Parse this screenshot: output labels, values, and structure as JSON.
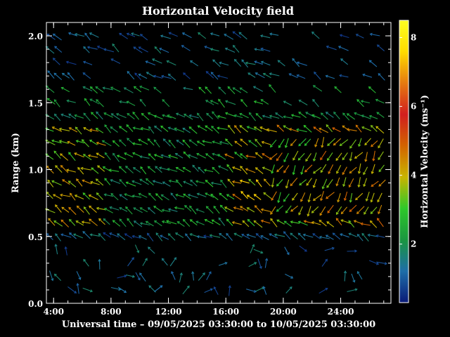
{
  "chart_data": {
    "type": "vector-field",
    "title": "Horizontal Velocity field",
    "xlabel": "Universal time – 09/05/2025 03:30:00 to 10/05/2025 03:30:00",
    "ylabel": "Range (km)",
    "x_unit": "hours",
    "x_range": [
      3.5,
      27.5
    ],
    "y_range": [
      0.0,
      2.1
    ],
    "x_ticks": [
      {
        "value": 4,
        "label": "4:00"
      },
      {
        "value": 8,
        "label": "8:00"
      },
      {
        "value": 12,
        "label": "12:00"
      },
      {
        "value": 16,
        "label": "16:00"
      },
      {
        "value": 20,
        "label": "20:00"
      },
      {
        "value": 24,
        "label": "24:00"
      }
    ],
    "y_ticks": [
      {
        "value": 0.0,
        "label": "0.0"
      },
      {
        "value": 0.5,
        "label": "0.5"
      },
      {
        "value": 1.0,
        "label": "1.0"
      },
      {
        "value": 1.5,
        "label": "1.5"
      },
      {
        "value": 2.0,
        "label": "2.0"
      }
    ],
    "colorbar": {
      "label": "Horizontal Velocity (ms⁻¹)",
      "range": [
        0.3,
        8.5
      ],
      "ticks": [
        {
          "value": 2,
          "label": "2"
        },
        {
          "value": 4,
          "label": "4"
        },
        {
          "value": 6,
          "label": "6"
        },
        {
          "value": 8,
          "label": "8"
        }
      ],
      "colors": [
        "#0a1a78",
        "#1e6ea8",
        "#1a9640",
        "#2ec82a",
        "#c8b400",
        "#d26400",
        "#d21e1e",
        "#e67a10",
        "#ffdc00",
        "#ffff20"
      ]
    },
    "grid": false,
    "legend": "colorbar-right"
  }
}
